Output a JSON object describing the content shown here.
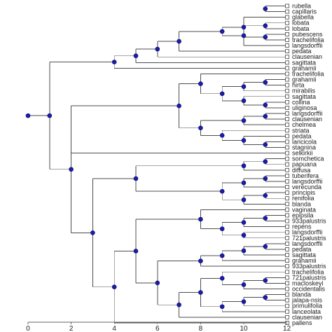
{
  "tree": {
    "label": "rubella|capillaris|glabella|lobata|lobata|pubescens|trachelifolia|langsdorffii|pedata|clausenian|sagittata|grahamii|trachelifolia|grahamii|hirta|mirabilis|sagittata|collina|uliginosa|langsdorffii|clausenian|chelmea|striata|pedata|laricicola|stagnina|selkirkii|somchetica|papuana|diffusa|tuberifera|langsdorffii|verecunda|principis|renifolia|blanda|vaginata|epipsila|933palustris|repens|langsdorffii|721palustris|langsdorffii|pedata|sagittata|grahamii|933palustris|trachelifolia|721palustris|macloskeyi|occidentalis|blanda|jalapa-nsis|primulifolia|lanceolata|clausenian|pallens",
    "leaves": [
      "rubella",
      "capillaris",
      "glabella",
      "lobata",
      "lobata",
      "pubescens",
      "trachelifolia",
      "langsdorffii",
      "pedata",
      "clausenian",
      "sagittata",
      "grahamii",
      "trachelifolia",
      "grahamii",
      "hirta",
      "mirabilis",
      "sagittata",
      "collina",
      "uliginosa",
      "langsdorffii",
      "clausenian",
      "chelmea",
      "striata",
      "pedata",
      "laricicola",
      "stagnina",
      "selkirkii",
      "somchetica",
      "papuana",
      "diffusa",
      "tuberifera",
      "langsdorffii",
      "verecunda",
      "principis",
      "renifolia",
      "blanda",
      "vaginata",
      "epipsila",
      "933palustris",
      "repens",
      "langsdorffii",
      "721palustris",
      "langsdorffii",
      "pedata",
      "sagittata",
      "grahamii",
      "933palustris",
      "trachelifolia",
      "721palustris",
      "macloskeyi",
      "occidentalis",
      "blanda",
      "jalapa-nsis",
      "primulifolia",
      "lanceolata",
      "clausenian",
      "pallens"
    ],
    "nodes": [
      {
        "x": 11,
        "c": [
          0,
          1
        ]
      },
      {
        "x": 11,
        "c": [
          3,
          4
        ]
      },
      {
        "x": 11,
        "c": [
          5,
          6
        ]
      },
      {
        "x": 10,
        "c": [
          2,
          59
        ]
      },
      {
        "x": 10,
        "c": [
          58,
          7
        ]
      },
      {
        "x": 9,
        "c": [
          61,
          60
        ]
      },
      {
        "x": 7,
        "c": [
          62,
          8
        ]
      },
      {
        "x": 6,
        "c": [
          63,
          9
        ]
      },
      {
        "x": 5,
        "c": [
          64,
          10
        ]
      },
      {
        "x": 4,
        "c": [
          65,
          11
        ]
      },
      {
        "x": 11,
        "c": [
          13,
          14
        ]
      },
      {
        "x": 10,
        "c": [
          67,
          15
        ]
      },
      {
        "x": 11,
        "c": [
          17,
          18
        ]
      },
      {
        "x": 10,
        "c": [
          16,
          69
        ]
      },
      {
        "x": 9,
        "c": [
          68,
          70
        ]
      },
      {
        "x": 11,
        "c": [
          19,
          20
        ]
      },
      {
        "x": 10,
        "c": [
          72,
          21
        ]
      },
      {
        "x": 11,
        "c": [
          24,
          25
        ]
      },
      {
        "x": 10,
        "c": [
          23,
          74
        ]
      },
      {
        "x": 9,
        "c": [
          22,
          75
        ]
      },
      {
        "x": 8,
        "c": [
          73,
          76
        ]
      },
      {
        "x": 8,
        "c": [
          12,
          71
        ]
      },
      {
        "x": 7,
        "c": [
          78,
          77
        ]
      },
      {
        "x": 11,
        "c": [
          27,
          28
        ]
      },
      {
        "x": 10,
        "c": [
          80,
          29
        ]
      },
      {
        "x": 11,
        "c": [
          30,
          31
        ]
      },
      {
        "x": 10,
        "c": [
          82,
          32
        ]
      },
      {
        "x": 11,
        "c": [
          33,
          34
        ]
      },
      {
        "x": 10,
        "c": [
          84,
          35
        ]
      },
      {
        "x": 9,
        "c": [
          83,
          85
        ]
      },
      {
        "x": 5,
        "c": [
          81,
          86
        ]
      },
      {
        "x": 11,
        "c": [
          37,
          38
        ]
      },
      {
        "x": 10,
        "c": [
          88,
          39
        ]
      },
      {
        "x": 10,
        "c": [
          40,
          41
        ]
      },
      {
        "x": 9,
        "c": [
          89,
          90
        ]
      },
      {
        "x": 8,
        "c": [
          36,
          91
        ]
      },
      {
        "x": 11,
        "c": [
          42,
          43
        ]
      },
      {
        "x": 10,
        "c": [
          93,
          44
        ]
      },
      {
        "x": 9,
        "c": [
          94,
          45
        ]
      },
      {
        "x": 8,
        "c": [
          95,
          46
        ]
      },
      {
        "x": 11,
        "c": [
          48,
          49
        ]
      },
      {
        "x": 10,
        "c": [
          97,
          50
        ]
      },
      {
        "x": 9,
        "c": [
          47,
          98
        ]
      },
      {
        "x": 11,
        "c": [
          51,
          52
        ]
      },
      {
        "x": 10,
        "c": [
          100,
          53
        ]
      },
      {
        "x": 9,
        "c": [
          101,
          54
        ]
      },
      {
        "x": 8,
        "c": [
          99,
          102
        ]
      },
      {
        "x": 7,
        "c": [
          103,
          55
        ]
      },
      {
        "x": 6,
        "c": [
          96,
          104
        ]
      },
      {
        "x": 5,
        "c": [
          92,
          105
        ]
      },
      {
        "x": 4,
        "c": [
          106,
          56
        ]
      },
      {
        "x": 3,
        "c": [
          87,
          107
        ]
      },
      {
        "x": 2,
        "c": [
          79,
          26,
          108
        ]
      },
      {
        "x": 1,
        "c": [
          66,
          109
        ]
      },
      {
        "x": 0,
        "c": [
          110
        ]
      }
    ]
  },
  "axis": {
    "min": 0,
    "max": 12,
    "ticks": [
      "0",
      "2",
      "4",
      "6",
      "8",
      "10",
      "12"
    ]
  },
  "colors": {
    "node": "#1c1ca8",
    "branch": "#4d4d4d",
    "tip_box": "#ffffff"
  }
}
